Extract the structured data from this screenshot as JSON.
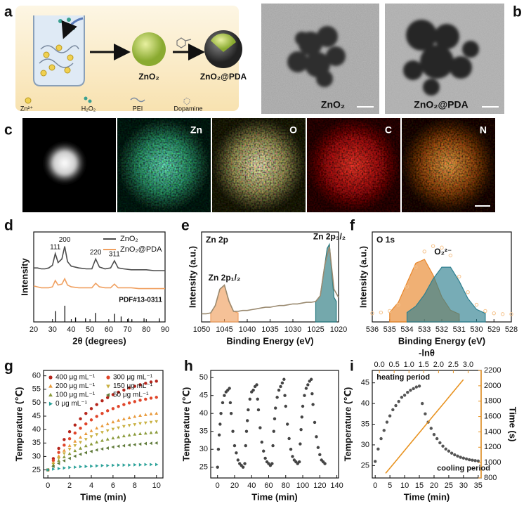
{
  "panel_labels": [
    "a",
    "b",
    "c",
    "d",
    "e",
    "f",
    "g",
    "h",
    "i"
  ],
  "scheme": {
    "core_label": "ZnO₂",
    "coated_label": "ZnO₂@PDA",
    "legend": [
      "Zn²⁺",
      "H₂O₂",
      "PEI",
      "Dopamine"
    ]
  },
  "tem": {
    "labels": [
      "ZnO₂",
      "ZnO₂@PDA"
    ]
  },
  "mapping": {
    "labels": [
      "Zn",
      "O",
      "C",
      "N"
    ]
  },
  "chart_data": [
    {
      "type": "line",
      "xlabel": "2θ (degrees)",
      "ylabel": "Intensity",
      "xlim": [
        20,
        90
      ],
      "xticks": [
        20,
        30,
        40,
        50,
        60,
        70,
        80,
        90
      ],
      "ylim": [
        0,
        100
      ],
      "legend": "upper right",
      "x": [
        20,
        22,
        24,
        26,
        28,
        30,
        31.5,
        33,
        35,
        36.5,
        38,
        40,
        44,
        48,
        51,
        53,
        55,
        58,
        61,
        63,
        65,
        68,
        72,
        76,
        80,
        84,
        88,
        90
      ],
      "series": [
        {
          "name": "ZnO₂",
          "color": "#4d4d4d",
          "values": [
            60,
            60,
            59,
            59,
            60,
            63,
            76,
            66,
            70,
            84,
            67,
            62,
            60,
            59,
            59,
            70,
            61,
            59,
            60,
            68,
            60,
            59,
            58,
            58,
            58,
            57,
            57,
            57
          ]
        },
        {
          "name": "ZnO₂@PDA",
          "color": "#f0a060",
          "values": [
            40,
            39,
            38,
            38,
            38,
            39,
            46,
            41,
            42,
            48,
            41,
            39,
            38,
            38,
            38,
            43,
            39,
            38,
            38,
            42,
            38,
            38,
            38,
            37,
            37,
            37,
            37,
            37
          ]
        }
      ],
      "annotations": [
        {
          "text": "111",
          "x": 31.5,
          "y": 83
        },
        {
          "text": "200",
          "x": 36.5,
          "y": 91
        },
        {
          "text": "220",
          "x": 53,
          "y": 77
        },
        {
          "text": "311",
          "x": 63,
          "y": 75
        }
      ],
      "reference": {
        "label": "PDF#13-0311",
        "x": [
          31.7,
          36.6,
          42.3,
          47.6,
          53.0,
          63.1,
          66.6,
          70.5,
          72.3,
          78.8,
          87.0
        ],
        "values": [
          12,
          18,
          5,
          4,
          10,
          9,
          6,
          4,
          3,
          4,
          4
        ]
      }
    },
    {
      "type": "xps",
      "title": "Zn 2p",
      "xlabel": "Binding Energy (eV)",
      "ylabel": "Intensity (a.u.)",
      "xlim": [
        1050,
        1020
      ],
      "xticks": [
        1050,
        1045,
        1040,
        1035,
        1030,
        1025,
        1020
      ],
      "ylim": [
        0,
        110
      ],
      "series": [
        {
          "name": "Zn 2p₁/₂",
          "color": "#f0a060",
          "style": "area",
          "x": [
            1048,
            1047,
            1046,
            1045,
            1044,
            1043,
            1042
          ],
          "values": [
            11,
            20,
            40,
            45,
            26,
            13,
            11
          ]
        },
        {
          "name": "Zn 2p₃/₂",
          "color": "#2a7a80",
          "style": "area",
          "x": [
            1025,
            1024,
            1023,
            1022.5,
            1022,
            1021.5,
            1021,
            1020.5
          ],
          "values": [
            25,
            32,
            70,
            90,
            95,
            60,
            30,
            25
          ]
        },
        {
          "color": "#9a8a70",
          "style": "line",
          "x": [
            1050,
            1049,
            1048,
            1047,
            1046,
            1045,
            1044,
            1043,
            1042,
            1041,
            1040,
            1039,
            1038,
            1037,
            1036,
            1035,
            1034,
            1033,
            1032,
            1031,
            1030,
            1029,
            1028,
            1027,
            1026,
            1025,
            1024,
            1023,
            1022,
            1021,
            1020
          ],
          "values": [
            10,
            10,
            11,
            20,
            40,
            45,
            25,
            13,
            13,
            14,
            14,
            15,
            16,
            17,
            18,
            18,
            19,
            20,
            20,
            21,
            22,
            22,
            23,
            24,
            24,
            25,
            32,
            70,
            92,
            40,
            30
          ]
        }
      ]
    },
    {
      "type": "xps",
      "title": "O 1s",
      "xlabel": "Binding Energy (eV)",
      "ylabel": "Intensity (a.u.)",
      "xlim": [
        536,
        528
      ],
      "xticks": [
        536,
        535,
        534,
        533,
        532,
        531,
        530,
        529,
        528
      ],
      "ylim": [
        0,
        115
      ],
      "series": [
        {
          "name": "O₂²⁻",
          "color": "#e8862a",
          "style": "area",
          "x": [
            535,
            534.5,
            534,
            533.5,
            533,
            532.5,
            532,
            531.5,
            531
          ],
          "values": [
            12,
            25,
            50,
            75,
            80,
            60,
            32,
            15,
            10
          ]
        },
        {
          "color": "#2e7f8f",
          "style": "area",
          "x": [
            534,
            533.5,
            533,
            532.5,
            532,
            531.5,
            531,
            530.5,
            530,
            529.5
          ],
          "values": [
            12,
            20,
            35,
            55,
            70,
            70,
            52,
            30,
            16,
            11
          ]
        },
        {
          "color": "#f5c28a",
          "style": "markers",
          "marker": "circle-open",
          "x": [
            536,
            535.5,
            535,
            534.5,
            534,
            533.5,
            533,
            532.5,
            532,
            531.5,
            531,
            530.5,
            530,
            529.5,
            529,
            528.5,
            528
          ],
          "values": [
            11,
            12,
            14,
            22,
            45,
            70,
            90,
            97,
            95,
            85,
            58,
            38,
            22,
            14,
            11,
            10,
            10
          ]
        }
      ]
    },
    {
      "type": "scatter",
      "xlabel": "Time (min)",
      "ylabel": "Temperature (℃)",
      "xlim": [
        -0.4,
        10.6
      ],
      "xticks": [
        0,
        2,
        4,
        6,
        8,
        10
      ],
      "ylim": [
        22,
        62
      ],
      "yticks": [
        25,
        30,
        35,
        40,
        45,
        50,
        55,
        60
      ],
      "legend": "upper left",
      "legend_columns": 2,
      "x": [
        0,
        0.5,
        1,
        1.5,
        2,
        2.5,
        3,
        3.5,
        4,
        4.5,
        5,
        5.5,
        6,
        6.5,
        7,
        7.5,
        8,
        8.5,
        9,
        9.5,
        10
      ],
      "series": [
        {
          "name": "400 μg mL⁻¹",
          "color": "#b5251b",
          "marker": "circle",
          "values": [
            25,
            29.2,
            33.0,
            36.3,
            39.2,
            41.7,
            44.0,
            46.0,
            47.8,
            49.3,
            50.7,
            51.9,
            53.0,
            53.9,
            54.7,
            55.5,
            56.1,
            56.7,
            57.2,
            57.7,
            58.0
          ]
        },
        {
          "name": "300 μg mL⁻¹",
          "color": "#e0452a",
          "marker": "circle",
          "values": [
            25,
            28.5,
            31.5,
            34.2,
            36.6,
            38.7,
            40.5,
            42.1,
            43.6,
            44.9,
            46.0,
            47.0,
            47.8,
            48.6,
            49.3,
            49.9,
            50.4,
            50.9,
            51.3,
            51.7,
            52.0
          ]
        },
        {
          "name": "200 μg mL⁻¹",
          "color": "#e8993a",
          "marker": "triangle-up",
          "values": [
            25,
            27.7,
            30.1,
            32.2,
            34.0,
            35.6,
            37.1,
            38.4,
            39.5,
            40.5,
            41.3,
            42.1,
            42.8,
            43.4,
            43.9,
            44.4,
            44.8,
            45.2,
            45.5,
            45.8,
            46.0
          ]
        },
        {
          "name": "150 μg mL⁻¹",
          "color": "#c8b040",
          "marker": "triangle-down",
          "values": [
            25,
            27.3,
            29.3,
            31.1,
            32.7,
            34.1,
            35.3,
            36.4,
            37.4,
            38.2,
            39.0,
            39.6,
            40.2,
            40.7,
            41.2,
            41.6,
            41.9,
            42.3,
            42.5,
            42.8,
            43.0
          ]
        },
        {
          "name": "100 μg mL⁻¹",
          "color": "#8a9a3a",
          "marker": "triangle-up",
          "values": [
            25,
            26.8,
            28.4,
            29.8,
            31.0,
            32.1,
            33.0,
            33.9,
            34.6,
            35.3,
            35.9,
            36.4,
            36.8,
            37.2,
            37.6,
            37.9,
            38.2,
            38.4,
            38.6,
            38.8,
            39.0
          ]
        },
        {
          "name": "50 μg mL⁻¹",
          "color": "#5f7a3a",
          "marker": "triangle-left",
          "values": [
            25,
            26.3,
            27.4,
            28.4,
            29.3,
            30.1,
            30.8,
            31.4,
            31.9,
            32.4,
            32.8,
            33.1,
            33.5,
            33.8,
            34.0,
            34.2,
            34.4,
            34.6,
            34.8,
            34.9,
            35.0
          ]
        },
        {
          "name": "0 μg mL⁻¹",
          "color": "#2aa198",
          "marker": "triangle-right",
          "values": [
            25,
            25.3,
            25.5,
            25.7,
            25.9,
            26.0,
            26.2,
            26.3,
            26.4,
            26.5,
            26.6,
            26.6,
            26.7,
            26.8,
            26.8,
            26.8,
            26.9,
            26.9,
            27.0,
            27.0,
            27.0
          ]
        }
      ]
    },
    {
      "type": "scatter",
      "xlabel": "Time (min)",
      "ylabel": "Temperature (℃)",
      "xlim": [
        -8,
        142
      ],
      "xticks": [
        0,
        20,
        40,
        60,
        80,
        100,
        120,
        140
      ],
      "ylim": [
        22,
        52
      ],
      "yticks": [
        25,
        30,
        35,
        40,
        45,
        50
      ],
      "x": [
        0,
        1,
        2,
        3,
        4,
        6,
        8,
        10,
        12,
        14,
        15,
        16,
        18,
        20,
        22,
        24,
        26,
        28,
        30,
        32,
        33,
        34,
        35,
        36,
        38,
        40,
        42,
        44,
        46,
        47,
        48,
        50,
        52,
        54,
        56,
        58,
        60,
        62,
        64,
        65,
        66,
        67,
        68,
        70,
        72,
        74,
        76,
        78,
        79,
        80,
        82,
        84,
        86,
        88,
        90,
        92,
        94,
        96,
        97,
        98,
        99,
        100,
        102,
        104,
        106,
        108,
        110,
        111,
        112,
        114,
        116,
        118,
        120,
        122,
        124,
        126
      ],
      "series": [
        {
          "color": "#444444",
          "marker": "circle",
          "values": [
            25,
            30,
            34,
            37,
            40,
            43,
            45,
            46,
            46.5,
            47,
            43,
            40,
            35,
            31,
            29,
            27,
            26,
            25.5,
            25,
            26,
            31,
            35,
            38,
            41,
            44,
            46,
            46.5,
            47.5,
            48,
            44,
            41,
            36,
            32,
            29.5,
            27.5,
            26.5,
            26,
            25.5,
            26,
            31,
            35,
            38.5,
            41.5,
            44.5,
            46.5,
            47.5,
            48.5,
            49.5,
            45,
            42,
            37,
            33,
            30,
            28,
            27,
            26.5,
            26,
            26.5,
            31.5,
            35.5,
            39,
            42,
            45,
            47,
            48,
            49,
            49.5,
            45.5,
            42.5,
            37.5,
            33.5,
            30.5,
            28.5,
            27,
            26.5,
            26
          ]
        }
      ]
    },
    {
      "type": "scatter",
      "xlabel": "Time (min)",
      "ylabel": "Temperature (℃)",
      "x2label": "-lnθ",
      "y2label": "Time (s)",
      "xlim": [
        -1,
        36
      ],
      "xticks": [
        0,
        5,
        10,
        15,
        20,
        25,
        30,
        35
      ],
      "ylim": [
        22,
        48
      ],
      "yticks": [
        25,
        30,
        35,
        40,
        45
      ],
      "x2lim": [
        -0.24,
        3.44
      ],
      "x2ticks": [
        {
          "value": 0,
          "label": "0.0"
        },
        0.5,
        {
          "value": 1,
          "label": "1.0"
        },
        1.5,
        {
          "value": 2,
          "label": "2.0"
        },
        2.5,
        {
          "value": 3,
          "label": "3.0"
        }
      ],
      "y2lim": [
        800,
        2200
      ],
      "y2ticks": [
        800,
        1000,
        1200,
        1400,
        1600,
        1800,
        2000,
        2200
      ],
      "series": [
        {
          "color": "#555555",
          "marker": "circle",
          "x": [
            0,
            1,
            2,
            3,
            4,
            5,
            6,
            7,
            8,
            9,
            10,
            11,
            12,
            13,
            14,
            15,
            16,
            17,
            18,
            19,
            20,
            21,
            22,
            23,
            24,
            25,
            26,
            27,
            28,
            29,
            30,
            31,
            32,
            33,
            34,
            35
          ],
          "values": [
            26,
            29,
            31.5,
            33.5,
            35.5,
            37,
            38.5,
            39.5,
            40.5,
            41.5,
            42,
            42.7,
            43.2,
            43.6,
            44,
            44.2,
            40,
            37.5,
            35.5,
            34,
            32.5,
            31.5,
            30.5,
            29.7,
            29,
            28.5,
            28,
            27.6,
            27.3,
            27,
            26.8,
            26.6,
            26.4,
            26.3,
            26.2,
            26.1
          ]
        },
        {
          "color": "#e8921f",
          "style": "line",
          "axis": "y2",
          "xaxis": "x2",
          "x": [
            0.21,
            0.6,
            1.0,
            1.4,
            1.8,
            2.2,
            2.6,
            2.84
          ],
          "values": [
            860,
            1041,
            1226,
            1412,
            1598,
            1783,
            1969,
            2080
          ]
        }
      ],
      "annotations": [
        {
          "text": "heating period",
          "x": 0.5,
          "y": 46.3
        },
        {
          "text": "cooling period",
          "x": 21,
          "y": 24.3
        }
      ]
    }
  ]
}
